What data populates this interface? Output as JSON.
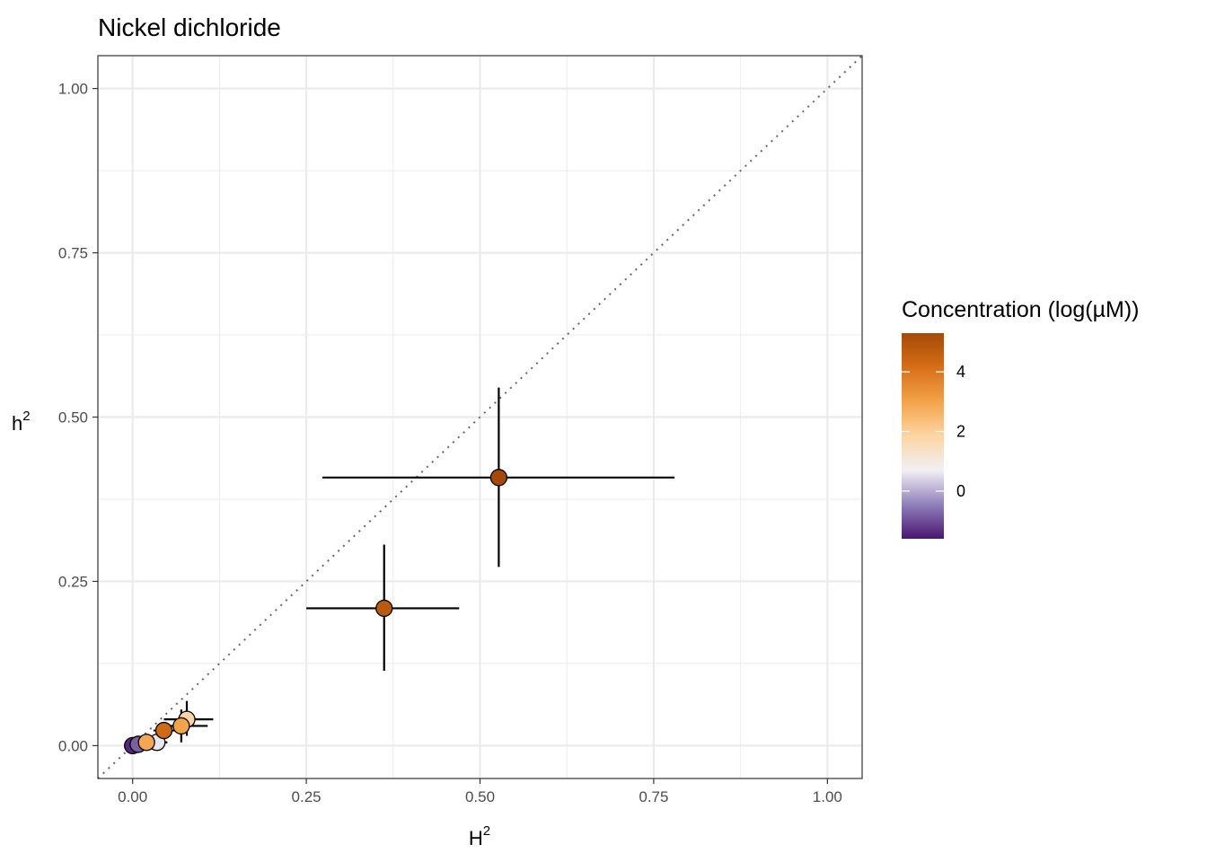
{
  "chart_data": {
    "type": "scatter",
    "title": "Nickel dichloride",
    "xlabel": "H",
    "xlabel_sup": "2",
    "ylabel": "h",
    "ylabel_sup": "2",
    "xlim": [
      -0.05,
      1.05
    ],
    "ylim": [
      -0.05,
      1.05
    ],
    "x_ticks": [
      0.0,
      0.25,
      0.5,
      0.75,
      1.0
    ],
    "y_ticks": [
      0.0,
      0.25,
      0.5,
      0.75,
      1.0
    ],
    "x_tick_labels": [
      "0.00",
      "0.25",
      "0.50",
      "0.75",
      "1.00"
    ],
    "y_tick_labels": [
      "0.00",
      "0.25",
      "0.50",
      "0.75",
      "1.00"
    ],
    "grid": true,
    "reference_line": "y = x (dotted)",
    "legend": {
      "title": "Concentration (log(µM))",
      "position": "right",
      "range": [
        -1.6,
        5.3
      ],
      "ticks": [
        0,
        2,
        4
      ],
      "tick_labels": [
        "0",
        "2",
        "4"
      ],
      "colors": [
        "#4a1670",
        "#8f80ba",
        "#f2f0f5",
        "#fcd5a2",
        "#f3a34a",
        "#d66f17",
        "#a44908"
      ]
    },
    "points": [
      {
        "H2": 0.0,
        "h2": 0.0,
        "H2_lo": -0.005,
        "H2_hi": 0.005,
        "h2_lo": -0.005,
        "h2_hi": 0.005,
        "conc": -1.4
      },
      {
        "H2": 0.008,
        "h2": 0.002,
        "H2_lo": 0.0,
        "H2_hi": 0.016,
        "h2_lo": -0.004,
        "h2_hi": 0.008,
        "conc": -0.8
      },
      {
        "H2": 0.035,
        "h2": 0.005,
        "H2_lo": 0.02,
        "H2_hi": 0.05,
        "h2_lo": -0.003,
        "h2_hi": 0.013,
        "conc": 0.6
      },
      {
        "H2": 0.078,
        "h2": 0.04,
        "H2_lo": 0.045,
        "H2_hi": 0.116,
        "h2_lo": 0.015,
        "h2_hi": 0.068,
        "conc": 1.8
      },
      {
        "H2": 0.07,
        "h2": 0.03,
        "H2_lo": 0.035,
        "H2_hi": 0.108,
        "h2_lo": 0.005,
        "h2_hi": 0.055,
        "conc": 3.0
      },
      {
        "H2": 0.02,
        "h2": 0.005,
        "H2_lo": 0.008,
        "H2_hi": 0.032,
        "h2_lo": -0.003,
        "h2_hi": 0.013,
        "conc": 2.9
      },
      {
        "H2": 0.045,
        "h2": 0.023,
        "H2_lo": 0.03,
        "H2_hi": 0.06,
        "h2_lo": 0.01,
        "h2_hi": 0.036,
        "conc": 4.3
      },
      {
        "H2": 0.362,
        "h2": 0.209,
        "H2_lo": 0.25,
        "H2_hi": 0.47,
        "h2_lo": 0.114,
        "h2_hi": 0.306,
        "conc": 4.8
      },
      {
        "H2": 0.527,
        "h2": 0.408,
        "H2_lo": 0.273,
        "H2_hi": 0.78,
        "h2_lo": 0.272,
        "h2_hi": 0.545,
        "conc": 5.3
      }
    ]
  }
}
